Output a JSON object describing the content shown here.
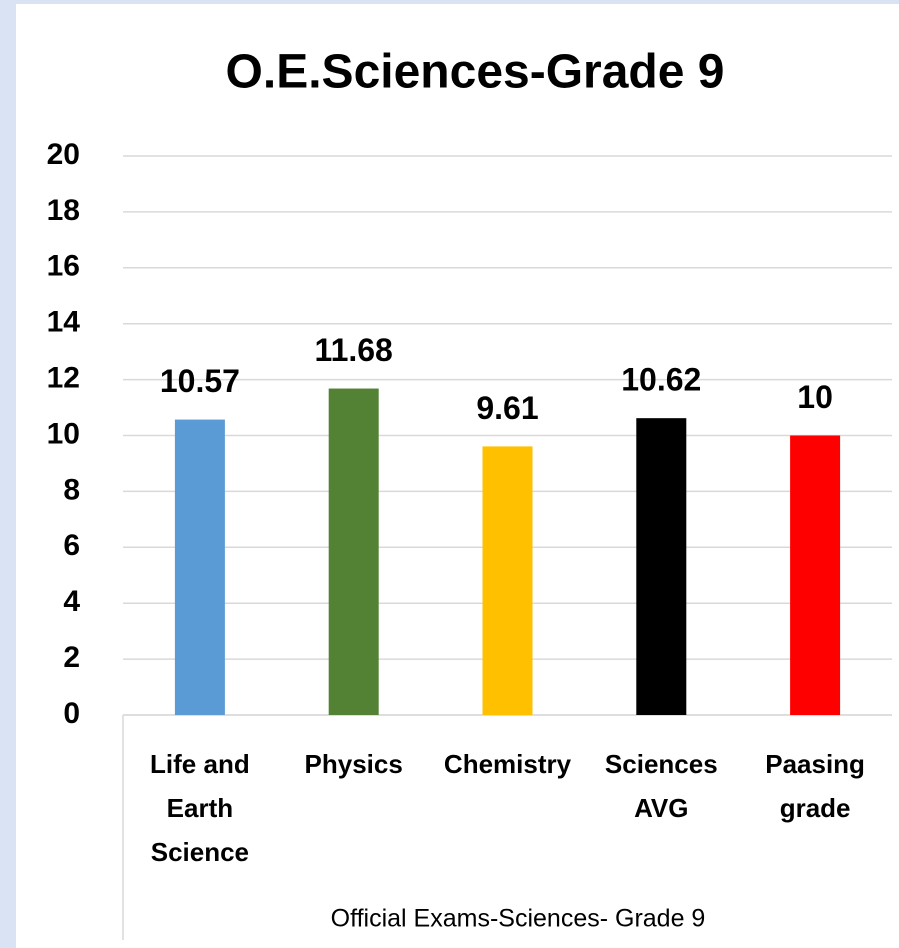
{
  "chart_data": {
    "type": "bar",
    "title": "O.E.Sciences-Grade 9",
    "x_label": "Official Exams-Sciences- Grade 9",
    "categories": [
      "Life and Earth Science",
      "Physics",
      "Chemistry",
      "Sciences AVG",
      "Paasing grade"
    ],
    "values": [
      10.57,
      11.68,
      9.61,
      10.62,
      10
    ],
    "colors": [
      "#5b9bd5",
      "#548235",
      "#ffc000",
      "#000000",
      "#ff0000"
    ],
    "ylim": [
      0,
      20
    ],
    "yticks": [
      0,
      2,
      4,
      6,
      8,
      10,
      12,
      14,
      16,
      18,
      20
    ],
    "grid": true
  }
}
